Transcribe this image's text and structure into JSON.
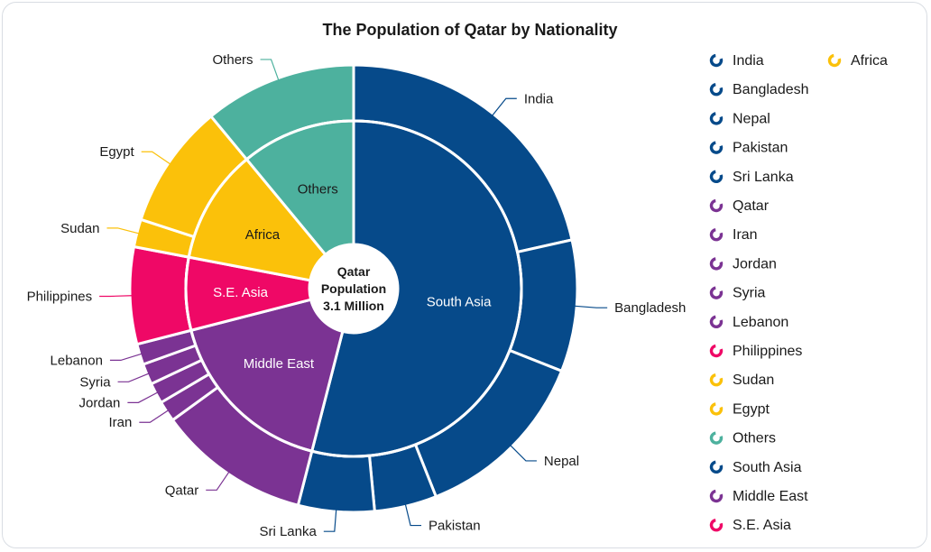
{
  "chart_data": {
    "type": "sunburst",
    "title": "The Population of Qatar by Nationality",
    "center_label": [
      "Qatar",
      "Population",
      "3.1 Million"
    ],
    "colors": {
      "South Asia": "#064a8a",
      "Middle East": "#7b3393",
      "S.E. Asia": "#ef0866",
      "Africa": "#fbc10a",
      "Others": "#4db19e"
    },
    "inner_ring": [
      {
        "name": "South Asia",
        "value": 54
      },
      {
        "name": "Middle East",
        "value": 17
      },
      {
        "name": "S.E. Asia",
        "value": 7
      },
      {
        "name": "Africa",
        "value": 11
      },
      {
        "name": "Others",
        "value": 11
      }
    ],
    "outer_ring": [
      {
        "name": "India",
        "parent": "South Asia",
        "value": 21.5
      },
      {
        "name": "Bangladesh",
        "parent": "South Asia",
        "value": 9.5
      },
      {
        "name": "Nepal",
        "parent": "South Asia",
        "value": 13
      },
      {
        "name": "Pakistan",
        "parent": "South Asia",
        "value": 4.5
      },
      {
        "name": "Sri Lanka",
        "parent": "South Asia",
        "value": 5.5
      },
      {
        "name": "Qatar",
        "parent": "Middle East",
        "value": 11
      },
      {
        "name": "Iran",
        "parent": "Middle East",
        "value": 1.5
      },
      {
        "name": "Jordan",
        "parent": "Middle East",
        "value": 1.5
      },
      {
        "name": "Syria",
        "parent": "Middle East",
        "value": 1.5
      },
      {
        "name": "Lebanon",
        "parent": "Middle East",
        "value": 1.5
      },
      {
        "name": "Philippines",
        "parent": "S.E. Asia",
        "value": 7
      },
      {
        "name": "Sudan",
        "parent": "Africa",
        "value": 2
      },
      {
        "name": "Egypt",
        "parent": "Africa",
        "value": 9
      },
      {
        "name": "Others",
        "parent": "Others",
        "value": 11
      }
    ],
    "legend": [
      {
        "name": "India",
        "group": "South Asia"
      },
      {
        "name": "Bangladesh",
        "group": "South Asia"
      },
      {
        "name": "Nepal",
        "group": "South Asia"
      },
      {
        "name": "Pakistan",
        "group": "South Asia"
      },
      {
        "name": "Sri Lanka",
        "group": "South Asia"
      },
      {
        "name": "Qatar",
        "group": "Middle East"
      },
      {
        "name": "Iran",
        "group": "Middle East"
      },
      {
        "name": "Jordan",
        "group": "Middle East"
      },
      {
        "name": "Syria",
        "group": "Middle East"
      },
      {
        "name": "Lebanon",
        "group": "Middle East"
      },
      {
        "name": "Philippines",
        "group": "S.E. Asia"
      },
      {
        "name": "Sudan",
        "group": "Africa"
      },
      {
        "name": "Egypt",
        "group": "Africa"
      },
      {
        "name": "Others",
        "group": "Others"
      },
      {
        "name": "South Asia",
        "group": "South Asia"
      },
      {
        "name": "Middle East",
        "group": "Middle East"
      },
      {
        "name": "S.E. Asia",
        "group": "S.E. Asia"
      },
      {
        "name": "Africa",
        "group": "Africa"
      }
    ],
    "legend_placement": "right"
  }
}
